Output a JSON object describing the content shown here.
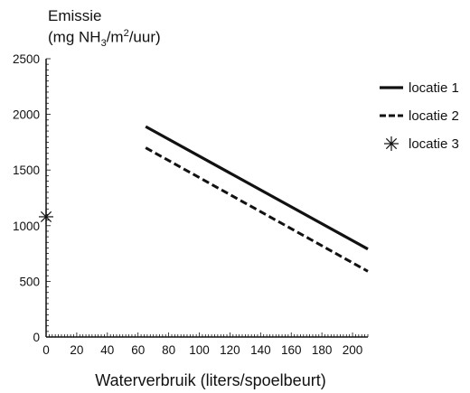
{
  "chart_data": {
    "type": "line",
    "ylabel_line1": "Emissie",
    "ylabel_line2": {
      "prefix": "(mg NH",
      "sub": "3",
      "middle": "/m",
      "sup": "2",
      "suffix": "/uur)"
    },
    "xlabel": "Waterverbruik (liters/spoelbeurt)",
    "xlim": [
      0,
      210
    ],
    "ylim": [
      0,
      2500
    ],
    "x_ticks": [
      0,
      20,
      40,
      60,
      80,
      100,
      120,
      140,
      160,
      180,
      200
    ],
    "y_ticks": [
      0,
      500,
      1000,
      1500,
      2000,
      2500
    ],
    "series": [
      {
        "name": "locatie 1",
        "style": "solid",
        "x": [
          65,
          210
        ],
        "y": [
          1890,
          790
        ]
      },
      {
        "name": "locatie 2",
        "style": "dashed",
        "x": [
          65,
          210
        ],
        "y": [
          1700,
          590
        ]
      },
      {
        "name": "locatie 3",
        "style": "marker-asterisk",
        "x": [
          0
        ],
        "y": [
          1080
        ]
      }
    ],
    "legend_position": "right",
    "grid": false,
    "colors": {
      "lines": "#111111",
      "background": "#ffffff"
    }
  }
}
